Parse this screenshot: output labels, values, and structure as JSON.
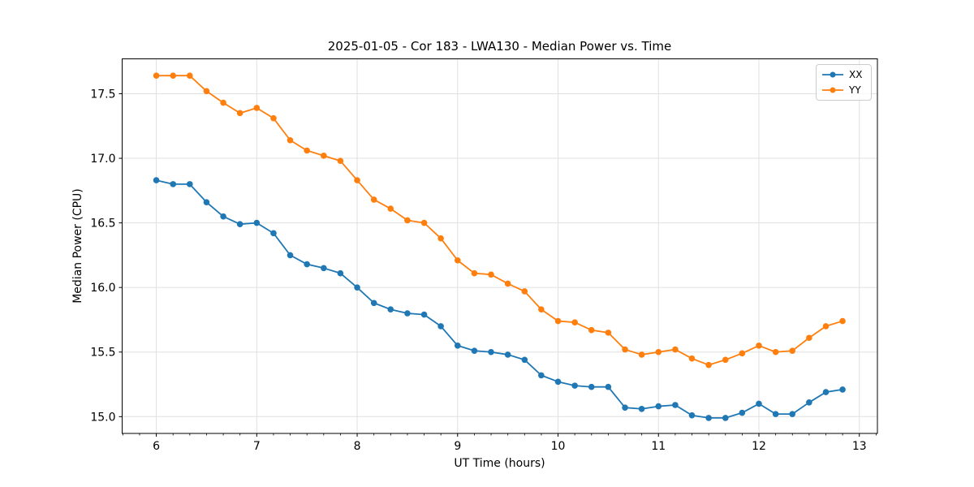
{
  "colors": {
    "grid": "#e0e0e0",
    "spine": "#000000",
    "text": "#000000",
    "series_xx": "#1f77b4",
    "series_yy": "#ff7f0e"
  },
  "chart_data": {
    "type": "line",
    "title": "2025-01-05 - Cor 183 - LWA130 - Median Power vs. Time",
    "xlabel": "UT Time (hours)",
    "ylabel": "Median Power (CPU)",
    "xlim": [
      5.66,
      13.18
    ],
    "ylim": [
      14.87,
      17.77
    ],
    "xticks": [
      6,
      7,
      8,
      9,
      10,
      11,
      12,
      13
    ],
    "xtick_labels": [
      "6",
      "7",
      "8",
      "9",
      "10",
      "11",
      "12",
      "13"
    ],
    "yticks": [
      15.0,
      15.5,
      16.0,
      16.5,
      17.0,
      17.5
    ],
    "ytick_labels": [
      "15.0",
      "15.5",
      "16.0",
      "16.5",
      "17.0",
      "17.5"
    ],
    "x_minor_tick_interval": 0.16667,
    "grid": true,
    "legend_position": "upper right",
    "x": [
      6.0,
      6.167,
      6.333,
      6.5,
      6.667,
      6.833,
      7.0,
      7.167,
      7.333,
      7.5,
      7.667,
      7.833,
      8.0,
      8.167,
      8.333,
      8.5,
      8.667,
      8.833,
      9.0,
      9.167,
      9.333,
      9.5,
      9.667,
      9.833,
      10.0,
      10.167,
      10.333,
      10.5,
      10.667,
      10.833,
      11.0,
      11.167,
      11.333,
      11.5,
      11.667,
      11.833,
      12.0,
      12.167,
      12.333,
      12.5,
      12.667,
      12.833
    ],
    "series": [
      {
        "name": "XX",
        "color": "#1f77b4",
        "marker": "circle",
        "values": [
          16.83,
          16.8,
          16.8,
          16.66,
          16.55,
          16.49,
          16.5,
          16.42,
          16.25,
          16.18,
          16.15,
          16.11,
          16.0,
          15.88,
          15.83,
          15.8,
          15.79,
          15.7,
          15.55,
          15.51,
          15.5,
          15.48,
          15.44,
          15.32,
          15.27,
          15.24,
          15.23,
          15.23,
          15.07,
          15.06,
          15.08,
          15.09,
          15.01,
          14.99,
          14.99,
          15.03,
          15.1,
          15.02,
          15.02,
          15.11,
          15.19,
          15.21
        ]
      },
      {
        "name": "YY",
        "color": "#ff7f0e",
        "marker": "circle",
        "values": [
          17.64,
          17.64,
          17.64,
          17.52,
          17.43,
          17.35,
          17.39,
          17.31,
          17.14,
          17.06,
          17.02,
          16.98,
          16.83,
          16.68,
          16.61,
          16.52,
          16.5,
          16.38,
          16.21,
          16.11,
          16.1,
          16.03,
          15.97,
          15.83,
          15.74,
          15.73,
          15.67,
          15.65,
          15.52,
          15.48,
          15.5,
          15.52,
          15.45,
          15.4,
          15.44,
          15.49,
          15.55,
          15.5,
          15.51,
          15.61,
          15.7,
          15.74
        ]
      }
    ]
  }
}
